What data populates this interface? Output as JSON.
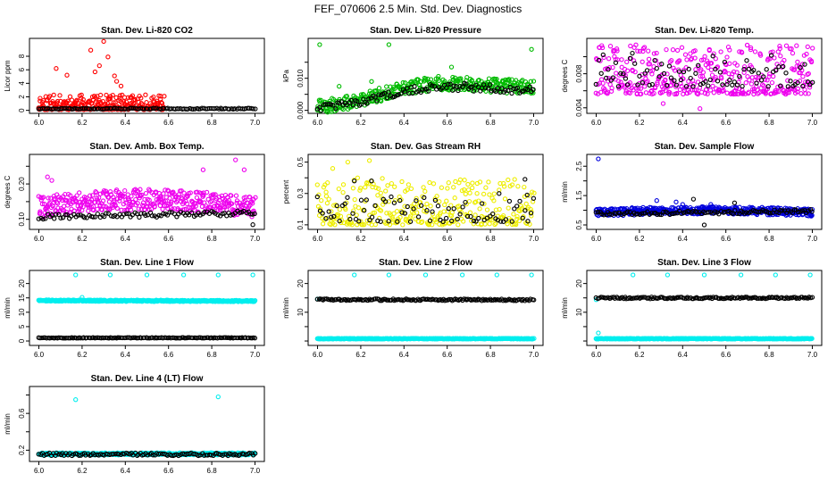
{
  "figure": {
    "main_title": "FEF_070606  2.5 Min. Std. Dev. Diagnostics"
  },
  "chart_data": [
    {
      "type": "scatter",
      "title": "Stan. Dev. Li-820 CO2",
      "ylabel": "Licor ppm",
      "xlim": [
        6.0,
        7.0
      ],
      "xticks": [
        "6.0",
        "6.2",
        "6.4",
        "6.6",
        "6.8",
        "7.0"
      ],
      "yticks": [
        0,
        2,
        4,
        6,
        8
      ],
      "ylim": [
        0,
        10.2
      ],
      "series": [
        {
          "name": "main",
          "color": "#ff0000",
          "mode": "rand",
          "xr": [
            6.0,
            6.58
          ],
          "y0": 0.1,
          "spread": 2.2,
          "n": 250,
          "seed": 11,
          "extras": [
            [
              6.3,
              10.2
            ],
            [
              6.24,
              8.9
            ],
            [
              6.32,
              7.9
            ],
            [
              6.08,
              6.2
            ],
            [
              6.28,
              6.6
            ],
            [
              6.26,
              5.7
            ],
            [
              6.13,
              5.2
            ],
            [
              6.35,
              5.1
            ],
            [
              6.36,
              4.3
            ],
            [
              6.38,
              3.6
            ]
          ]
        },
        {
          "name": "ref",
          "color": "#000000",
          "mode": "line",
          "xr": [
            6.0,
            7.0
          ],
          "y0": 0.25,
          "y1": 0.25,
          "jit": 0.08,
          "n": 120,
          "seed": 12
        }
      ]
    },
    {
      "type": "scatter",
      "title": "Stan. Dev. Li-820 Pressure",
      "ylabel": "kPa",
      "xlim": [
        6.0,
        7.0
      ],
      "xticks": [
        "6.0",
        "6.2",
        "6.4",
        "6.6",
        "6.8",
        "7.0"
      ],
      "yticks": [
        0.0,
        0.005,
        0.01,
        0.015
      ],
      "ytick_labels": [
        "0.000",
        "",
        "0.010",
        ""
      ],
      "ylim": [
        0,
        0.0215
      ],
      "series": [
        {
          "name": "main",
          "color": "#00bb00",
          "mode": "rise",
          "xr": [
            6.0,
            7.0
          ],
          "ya": 0.0015,
          "yb": 0.0085,
          "xm": 6.6,
          "jit": 0.0022,
          "n": 360,
          "seed": 21,
          "extras": [
            [
              6.01,
              0.0205
            ],
            [
              6.33,
              0.0205
            ],
            [
              6.99,
              0.019
            ],
            [
              6.62,
              0.0135
            ],
            [
              6.1,
              0.0075
            ],
            [
              6.25,
              0.009
            ]
          ]
        },
        {
          "name": "ref",
          "color": "#000000",
          "mode": "rise",
          "xr": [
            6.0,
            7.0
          ],
          "ya": 0.001,
          "yb": 0.0075,
          "xm": 6.6,
          "jit": 0.0012,
          "n": 110,
          "seed": 22
        }
      ]
    },
    {
      "type": "scatter",
      "title": "Stan. Dev. Li-820 Temp.",
      "ylabel": "degrees C",
      "xlim": [
        6.0,
        7.0
      ],
      "xticks": [
        "6.0",
        "6.2",
        "6.4",
        "6.6",
        "6.8",
        "7.0"
      ],
      "yticks": [
        0.004,
        0.006,
        0.008,
        0.01
      ],
      "ytick_labels": [
        "0.004",
        "",
        "0.008",
        ""
      ],
      "ylim": [
        0.0037,
        0.0118
      ],
      "series": [
        {
          "name": "main",
          "color": "#ee00ee",
          "mode": "rand",
          "xr": [
            6.0,
            7.0
          ],
          "y0": 0.0056,
          "spread": 0.0058,
          "n": 420,
          "seed": 31,
          "extras": [
            [
              6.48,
              0.0039
            ],
            [
              6.31,
              0.0045
            ]
          ]
        },
        {
          "name": "ref",
          "color": "#000000",
          "mode": "rand",
          "xr": [
            6.0,
            7.0
          ],
          "y0": 0.0065,
          "spread": 0.004,
          "n": 90,
          "seed": 32
        }
      ]
    },
    {
      "type": "scatter",
      "title": "Stan. Dev. Amb. Box Temp.",
      "ylabel": "degrees C",
      "xlim": [
        6.0,
        7.0
      ],
      "xticks": [
        "6.0",
        "6.2",
        "6.4",
        "6.6",
        "6.8",
        "7.0"
      ],
      "yticks": [
        0.1,
        0.15,
        0.2,
        0.25
      ],
      "ytick_labels": [
        "0.10",
        "",
        "0.20",
        ""
      ],
      "ylim": [
        0.08,
        0.275
      ],
      "series": [
        {
          "name": "main",
          "color": "#ee00ee",
          "mode": "band",
          "xr": [
            6.0,
            7.0
          ],
          "ya": 0.135,
          "yb": 0.155,
          "jit": 0.03,
          "n": 420,
          "seed": 41,
          "extras": [
            [
              6.91,
              0.268
            ],
            [
              6.95,
              0.24
            ],
            [
              6.04,
              0.22
            ],
            [
              6.06,
              0.21
            ],
            [
              6.76,
              0.24
            ]
          ]
        },
        {
          "name": "ref",
          "color": "#000000",
          "mode": "line",
          "xr": [
            6.0,
            7.0
          ],
          "y0": 0.107,
          "y1": 0.118,
          "jit": 0.007,
          "n": 100,
          "seed": 42,
          "extras": [
            [
              6.99,
              0.085
            ]
          ]
        }
      ]
    },
    {
      "type": "scatter",
      "title": "Stan. Dev. Gas Stream RH",
      "ylabel": "percent",
      "xlim": [
        6.0,
        7.0
      ],
      "xticks": [
        "6.0",
        "6.2",
        "6.4",
        "6.6",
        "6.8",
        "7.0"
      ],
      "yticks": [
        0.1,
        0.2,
        0.3,
        0.4,
        0.5
      ],
      "ytick_labels": [
        "0.1",
        "",
        "0.3",
        "",
        "0.5"
      ],
      "ylim": [
        0.09,
        0.53
      ],
      "series": [
        {
          "name": "main",
          "color": "#eeee00",
          "mode": "rand",
          "xr": [
            6.0,
            7.0
          ],
          "y0": 0.1,
          "spread": 0.3,
          "n": 320,
          "seed": 51,
          "extras": [
            [
              6.14,
              0.5
            ],
            [
              6.24,
              0.51
            ],
            [
              6.07,
              0.46
            ]
          ]
        },
        {
          "name": "ref",
          "color": "#000000",
          "mode": "rand",
          "xr": [
            6.0,
            7.0
          ],
          "y0": 0.12,
          "spread": 0.16,
          "n": 80,
          "seed": 52,
          "extras": [
            [
              6.17,
              0.38
            ],
            [
              6.25,
              0.38
            ],
            [
              6.96,
              0.39
            ],
            [
              6.97,
              0.29
            ],
            [
              6.84,
              0.3
            ]
          ]
        }
      ]
    },
    {
      "type": "scatter",
      "title": "Stan. Dev. Sample Flow",
      "ylabel": "ml/min",
      "xlim": [
        6.0,
        7.0
      ],
      "xticks": [
        "6.0",
        "6.2",
        "6.4",
        "6.6",
        "6.8",
        "7.0"
      ],
      "yticks": [
        0.5,
        1.0,
        1.5,
        2.0,
        2.5
      ],
      "ytick_labels": [
        "0.5",
        "",
        "1.5",
        "",
        "2.5"
      ],
      "ylim": [
        0.45,
        2.8
      ],
      "series": [
        {
          "name": "main",
          "color": "#0000dd",
          "mode": "band",
          "xr": [
            6.0,
            7.0
          ],
          "ya": 0.92,
          "yb": 1.0,
          "jit": 0.13,
          "n": 420,
          "seed": 61,
          "extras": [
            [
              6.01,
              2.75
            ],
            [
              6.28,
              1.33
            ],
            [
              6.37,
              1.28
            ],
            [
              6.4,
              1.2
            ],
            [
              6.53,
              1.2
            ]
          ]
        },
        {
          "name": "ref",
          "color": "#000000",
          "mode": "line",
          "xr": [
            6.0,
            7.0
          ],
          "y0": 0.88,
          "y1": 0.97,
          "jit": 0.06,
          "n": 110,
          "seed": 62,
          "extras": [
            [
              6.45,
              1.38
            ],
            [
              6.64,
              1.25
            ],
            [
              6.5,
              0.5
            ]
          ]
        }
      ]
    },
    {
      "type": "scatter",
      "title": "Stan. Dev. Line 1 Flow",
      "ylabel": "ml/min",
      "xlim": [
        6.0,
        7.0
      ],
      "xticks": [
        "6.0",
        "6.2",
        "6.4",
        "6.6",
        "6.8",
        "7.0"
      ],
      "yticks": [
        0,
        5,
        10,
        15,
        20
      ],
      "ylim": [
        -0.5,
        23.5
      ],
      "series": [
        {
          "name": "main",
          "color": "#00eeee",
          "mode": "line",
          "xr": [
            6.0,
            7.0
          ],
          "y0": 14.1,
          "y1": 13.9,
          "jit": 0.25,
          "n": 420,
          "seed": 71,
          "extras": [
            [
              6.17,
              23.0
            ],
            [
              6.33,
              23.0
            ],
            [
              6.5,
              23.0
            ],
            [
              6.67,
              23.0
            ],
            [
              6.83,
              23.0
            ],
            [
              6.99,
              23.0
            ],
            [
              6.2,
              15.2
            ]
          ]
        },
        {
          "name": "ref",
          "color": "#000000",
          "mode": "line",
          "xr": [
            6.0,
            7.0
          ],
          "y0": 1.1,
          "y1": 1.1,
          "jit": 0.1,
          "n": 140,
          "seed": 72
        }
      ]
    },
    {
      "type": "scatter",
      "title": "Stan. Dev. Line 2 Flow",
      "ylabel": "ml/min",
      "xlim": [
        6.0,
        7.0
      ],
      "xticks": [
        "6.0",
        "6.2",
        "6.4",
        "6.6",
        "6.8",
        "7.0"
      ],
      "yticks": [
        0,
        5,
        10,
        15,
        20
      ],
      "ytick_labels": [
        "",
        "",
        "10",
        "",
        "20"
      ],
      "ylim": [
        -0.5,
        23.5
      ],
      "series": [
        {
          "name": "main",
          "color": "#00eeee",
          "mode": "line",
          "xr": [
            6.0,
            7.0
          ],
          "y0": 0.8,
          "y1": 0.8,
          "jit": 0.12,
          "n": 420,
          "seed": 81,
          "extras": [
            [
              6.17,
              23.0
            ],
            [
              6.33,
              23.0
            ],
            [
              6.5,
              23.0
            ],
            [
              6.67,
              23.0
            ],
            [
              6.83,
              23.0
            ],
            [
              6.99,
              23.0
            ],
            [
              6.0,
              14.6
            ]
          ]
        },
        {
          "name": "ref",
          "color": "#000000",
          "mode": "line",
          "xr": [
            6.0,
            7.0
          ],
          "y0": 14.4,
          "y1": 14.3,
          "jit": 0.3,
          "n": 150,
          "seed": 82
        }
      ]
    },
    {
      "type": "scatter",
      "title": "Stan. Dev. Line 3 Flow",
      "ylabel": "ml/min",
      "xlim": [
        6.0,
        7.0
      ],
      "xticks": [
        "6.0",
        "6.2",
        "6.4",
        "6.6",
        "6.8",
        "7.0"
      ],
      "yticks": [
        0,
        5,
        10,
        15,
        20
      ],
      "ytick_labels": [
        "",
        "",
        "10",
        "",
        "20"
      ],
      "ylim": [
        -0.5,
        23.5
      ],
      "series": [
        {
          "name": "main",
          "color": "#00eeee",
          "mode": "line",
          "xr": [
            6.0,
            7.0
          ],
          "y0": 0.8,
          "y1": 0.8,
          "jit": 0.12,
          "n": 420,
          "seed": 91,
          "extras": [
            [
              6.17,
              23.0
            ],
            [
              6.33,
              23.0
            ],
            [
              6.5,
              23.0
            ],
            [
              6.67,
              23.0
            ],
            [
              6.83,
              23.0
            ],
            [
              6.99,
              23.0
            ],
            [
              6.01,
              2.8
            ],
            [
              6.0,
              14.4
            ]
          ]
        },
        {
          "name": "ref",
          "color": "#000000",
          "mode": "line",
          "xr": [
            6.0,
            7.0
          ],
          "y0": 15.0,
          "y1": 15.0,
          "jit": 0.3,
          "n": 150,
          "seed": 92
        }
      ]
    },
    {
      "type": "scatter",
      "title": "Stan. Dev. Line 4 (LT) Flow",
      "ylabel": "ml/min",
      "xlim": [
        6.0,
        7.0
      ],
      "xticks": [
        "6.0",
        "6.2",
        "6.4",
        "6.6",
        "6.8",
        "7.0"
      ],
      "yticks": [
        0.2,
        0.4,
        0.6,
        0.8
      ],
      "ytick_labels": [
        "0.2",
        "",
        "0.6",
        ""
      ],
      "ylim": [
        0.11,
        0.86
      ],
      "series": [
        {
          "name": "main",
          "color": "#00eeee",
          "mode": "line",
          "xr": [
            6.0,
            7.0
          ],
          "y0": 0.16,
          "y1": 0.16,
          "jit": 0.012,
          "n": 420,
          "seed": 101,
          "extras": [
            [
              6.17,
              0.75
            ],
            [
              6.83,
              0.78
            ],
            [
              6.33,
              0.16
            ],
            [
              6.5,
              0.17
            ]
          ]
        },
        {
          "name": "ref",
          "color": "#000000",
          "mode": "line",
          "xr": [
            6.0,
            7.0
          ],
          "y0": 0.155,
          "y1": 0.155,
          "jit": 0.015,
          "n": 120,
          "seed": 102
        }
      ]
    }
  ]
}
